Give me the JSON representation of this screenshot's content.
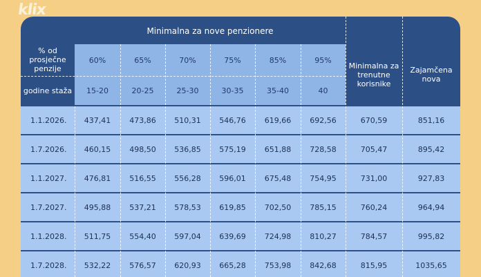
{
  "watermark": "klix",
  "header": {
    "group_title": "Minimalna za nove penzionere",
    "row1_label": "% od prosječne penzije",
    "row2_label": "godine staža",
    "percentages": [
      "60%",
      "65%",
      "70%",
      "75%",
      "85%",
      "95%"
    ],
    "years": [
      "15-20",
      "20-25",
      "25-30",
      "30-35",
      "35-40",
      "40"
    ],
    "col_current": "Minimalna za trenutne korisnike",
    "col_guaranteed": "Zajamčena nova"
  },
  "rows": [
    {
      "date": "1.1.2026.",
      "values": [
        "437,41",
        "473,86",
        "510,31",
        "546,76",
        "619,66",
        "692,56",
        "670,59",
        "851,16"
      ]
    },
    {
      "date": "1.7.2026.",
      "values": [
        "460,15",
        "498,50",
        "536,85",
        "575,19",
        "651,88",
        "728,58",
        "705,47",
        "895,42"
      ]
    },
    {
      "date": "1.1.2027.",
      "values": [
        "476,81",
        "516,55",
        "556,28",
        "596,01",
        "675,48",
        "754,95",
        "731,00",
        "927,83"
      ]
    },
    {
      "date": "1.7.2027.",
      "values": [
        "495,88",
        "537,21",
        "578,53",
        "619,85",
        "702,50",
        "785,15",
        "760,24",
        "964,94"
      ]
    },
    {
      "date": "1.1.2028.",
      "values": [
        "511,75",
        "554,40",
        "597,04",
        "639,69",
        "724,98",
        "810,27",
        "784,57",
        "995,82"
      ]
    },
    {
      "date": "1.7.2028.",
      "values": [
        "532,22",
        "576,57",
        "620,93",
        "665,28",
        "753,98",
        "842,68",
        "815,95",
        "1035,65"
      ]
    }
  ]
}
